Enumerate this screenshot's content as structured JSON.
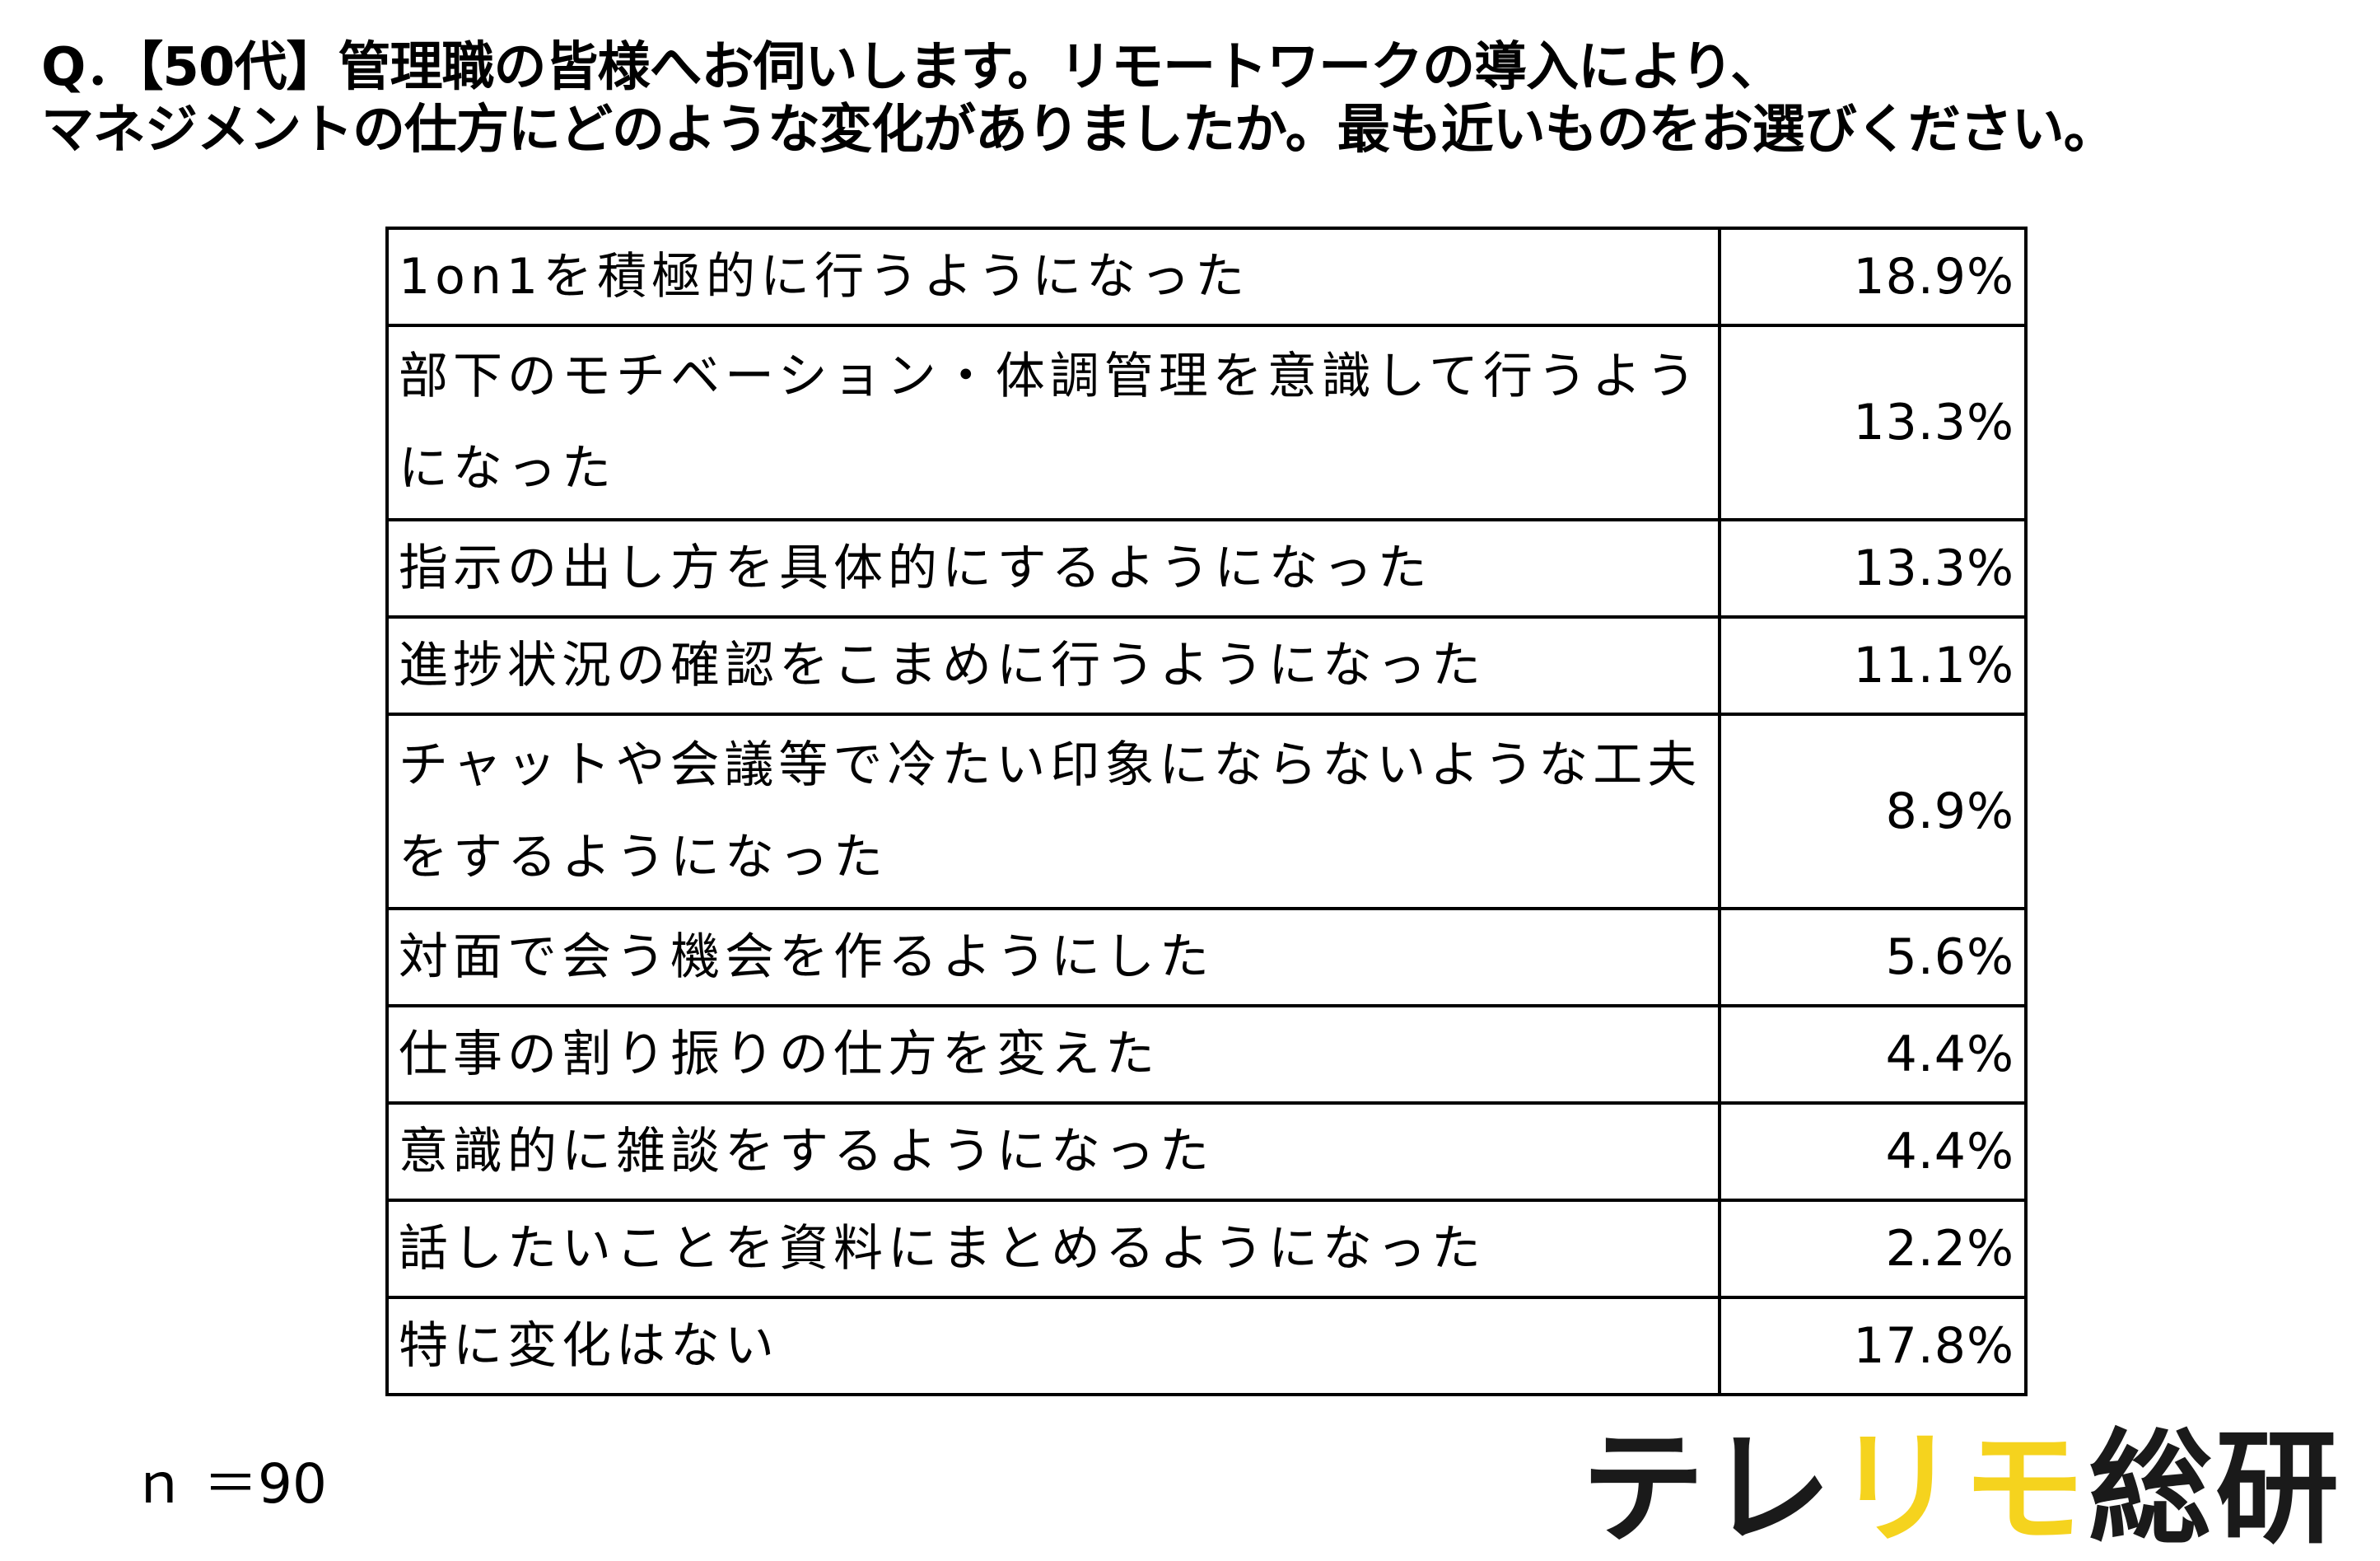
{
  "question": {
    "line1": "Q．【50代】管理職の皆様へお伺いします。リモートワークの導入により、",
    "line2": "マネジメントの仕方にどのような変化がありましたか。最も近いものをお選びください。"
  },
  "chart_data": {
    "type": "table",
    "unit": "%",
    "rows": [
      {
        "label": "1on1を積極的に行うようになった",
        "display": "18.9%",
        "value": 18.9
      },
      {
        "label": "部下のモチベーション・体調管理を意識して行うようになった",
        "display": "13.3%",
        "value": 13.3
      },
      {
        "label": "指示の出し方を具体的にするようになった",
        "display": "13.3%",
        "value": 13.3
      },
      {
        "label": "進捗状況の確認をこまめに行うようになった",
        "display": "11.1%",
        "value": 11.1
      },
      {
        "label": "チャットや会議等で冷たい印象にならないような工夫をするようになった",
        "display": "8.9%",
        "value": 8.9
      },
      {
        "label": "対面で会う機会を作るようにした",
        "display": "5.6%",
        "value": 5.6
      },
      {
        "label": "仕事の割り振りの仕方を変えた",
        "display": "4.4%",
        "value": 4.4
      },
      {
        "label": "意識的に雑談をするようになった",
        "display": "4.4%",
        "value": 4.4
      },
      {
        "label": "話したいことを資料にまとめるようになった",
        "display": "2.2%",
        "value": 2.2
      },
      {
        "label": "特に変化はない",
        "display": "17.8%",
        "value": 17.8
      }
    ]
  },
  "footer": {
    "sample_size": "ｎ ＝90"
  },
  "brand": {
    "part1": "テレ",
    "part2": "リモ",
    "part3": "総研",
    "colors": {
      "dark": "#1a1a1a",
      "accent": "#f5d31e"
    }
  }
}
